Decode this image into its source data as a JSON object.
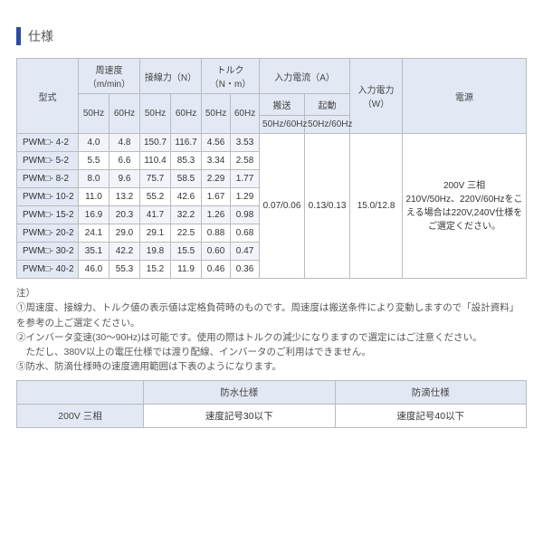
{
  "title": "仕様",
  "headers": {
    "model": "型式",
    "speed": "周速度（m/min）",
    "tangent": "接線力（N）",
    "torque": "トルク（N・m）",
    "current": "入力電流（A）",
    "power": "入力電力（W）",
    "supply": "電源",
    "hz50": "50Hz",
    "hz60": "60Hz",
    "convey": "搬送",
    "startup": "起動",
    "hz5060": "50Hz/60Hz"
  },
  "rows": [
    {
      "model": "PWM□- 4-2",
      "s50": "4.0",
      "s60": "4.8",
      "t50": "150.7",
      "t60": "116.7",
      "q50": "4.56",
      "q60": "3.53"
    },
    {
      "model": "PWM□- 5-2",
      "s50": "5.5",
      "s60": "6.6",
      "t50": "110.4",
      "t60": "85.3",
      "q50": "3.34",
      "q60": "2.58"
    },
    {
      "model": "PWM□- 8-2",
      "s50": "8.0",
      "s60": "9.6",
      "t50": "75.7",
      "t60": "58.5",
      "q50": "2.29",
      "q60": "1.77"
    },
    {
      "model": "PWM□- 10-2",
      "s50": "11.0",
      "s60": "13.2",
      "t50": "55.2",
      "t60": "42.6",
      "q50": "1.67",
      "q60": "1.29"
    },
    {
      "model": "PWM□- 15-2",
      "s50": "16.9",
      "s60": "20.3",
      "t50": "41.7",
      "t60": "32.2",
      "q50": "1.26",
      "q60": "0.98"
    },
    {
      "model": "PWM□- 20-2",
      "s50": "24.1",
      "s60": "29.0",
      "t50": "29.1",
      "t60": "22.5",
      "q50": "0.88",
      "q60": "0.68"
    },
    {
      "model": "PWM□- 30-2",
      "s50": "35.1",
      "s60": "42.2",
      "t50": "19.8",
      "t60": "15.5",
      "q50": "0.60",
      "q60": "0.47"
    },
    {
      "model": "PWM□- 40-2",
      "s50": "46.0",
      "s60": "55.3",
      "t50": "15.2",
      "t60": "11.9",
      "q50": "0.46",
      "q60": "0.36"
    }
  ],
  "spans": {
    "convey": "0.07/0.06",
    "startup": "0.13/0.13",
    "power": "15.0/12.8",
    "supply": "200V 三相\n210V/50Hz、220V/60Hzをこえる場合は220V,240V仕様をご選定ください。"
  },
  "notes": {
    "head": "注）",
    "n1": "①周速度、接線力、トルク値の表示値は定格負荷時のものです。周速度は搬送条件により変動しますので「設計資料」を参考の上ご選定ください。",
    "n2": "②インバータ変速(30～90Hz)は可能です。使用の際はトルクの減少になりますので選定にはご注意ください。",
    "n2b": "　ただし、380V以上の電圧仕様では渡り配線、インバータのご利用はできません。",
    "n5": "⑤防水、防滴仕様時の速度適用範囲は下表のようになります。"
  },
  "table2": {
    "h1": "防水仕様",
    "h2": "防滴仕様",
    "rowlabel": "200V 三相",
    "v1": "速度記号30以下",
    "v2": "速度記号40以下"
  }
}
